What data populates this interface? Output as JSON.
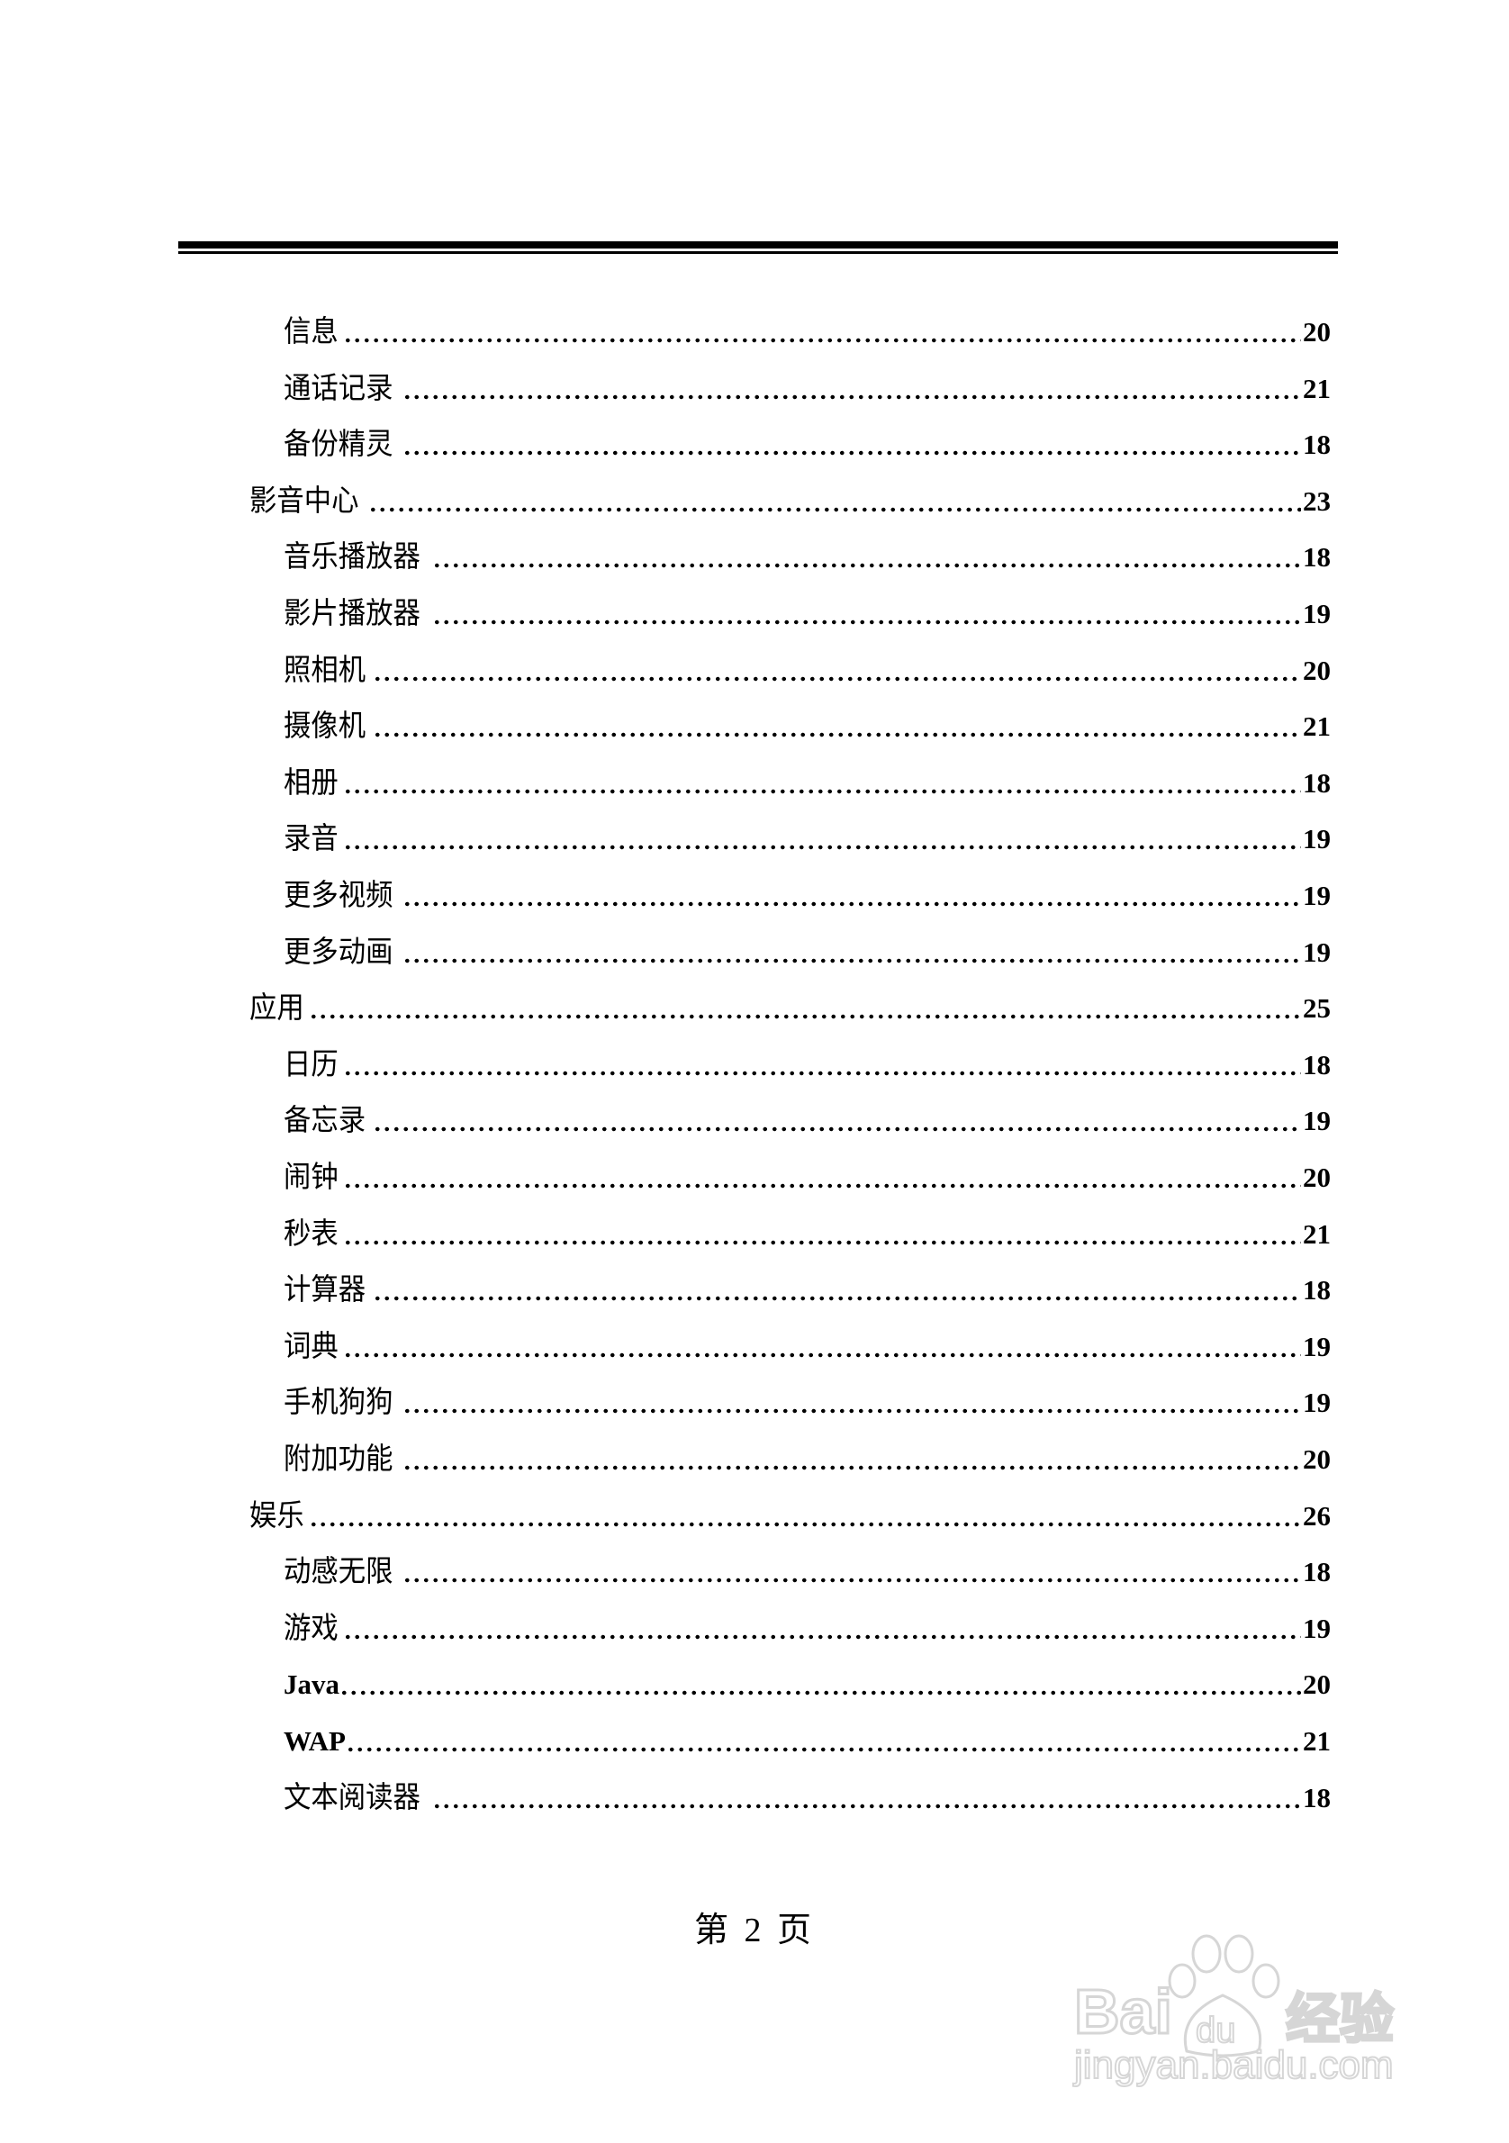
{
  "toc": [
    {
      "label": "信息",
      "page": "20",
      "level": 2
    },
    {
      "label": "通话记录",
      "page": "21",
      "level": 2
    },
    {
      "label": "备份精灵",
      "page": "18",
      "level": 2
    },
    {
      "label": "影音中心",
      "page": "23",
      "level": 1
    },
    {
      "label": "音乐播放器",
      "page": "18",
      "level": 2
    },
    {
      "label": "影片播放器",
      "page": "19",
      "level": 2
    },
    {
      "label": "照相机",
      "page": "20",
      "level": 2
    },
    {
      "label": "摄像机",
      "page": "21",
      "level": 2
    },
    {
      "label": "相册",
      "page": "18",
      "level": 2
    },
    {
      "label": "录音",
      "page": "19",
      "level": 2
    },
    {
      "label": "更多视频",
      "page": "19",
      "level": 2
    },
    {
      "label": "更多动画",
      "page": "19",
      "level": 2
    },
    {
      "label": "应用",
      "page": "25",
      "level": 1
    },
    {
      "label": "日历",
      "page": "18",
      "level": 2
    },
    {
      "label": "备忘录",
      "page": "19",
      "level": 2
    },
    {
      "label": "闹钟",
      "page": "20",
      "level": 2
    },
    {
      "label": "秒表",
      "page": "21",
      "level": 2
    },
    {
      "label": "计算器",
      "page": "18",
      "level": 2
    },
    {
      "label": "词典",
      "page": "19",
      "level": 2
    },
    {
      "label": "手机狗狗",
      "page": "19",
      "level": 2
    },
    {
      "label": "附加功能",
      "page": "20",
      "level": 2
    },
    {
      "label": "娱乐",
      "page": "26",
      "level": 1
    },
    {
      "label": "动感无限",
      "page": "18",
      "level": 2
    },
    {
      "label": "游戏",
      "page": "19",
      "level": 2
    },
    {
      "label": "Java",
      "page": "20",
      "level": 2,
      "latin": true
    },
    {
      "label": "WAP",
      "page": "21",
      "level": 2,
      "latin": true
    },
    {
      "label": "文本阅读器",
      "page": "18",
      "level": 2
    }
  ],
  "footer": {
    "page_label": "第 2 页"
  },
  "watermark": {
    "brand": "Bai du 经验",
    "url": "jingyan.baidu.com",
    "color": "#d8d8d8"
  }
}
